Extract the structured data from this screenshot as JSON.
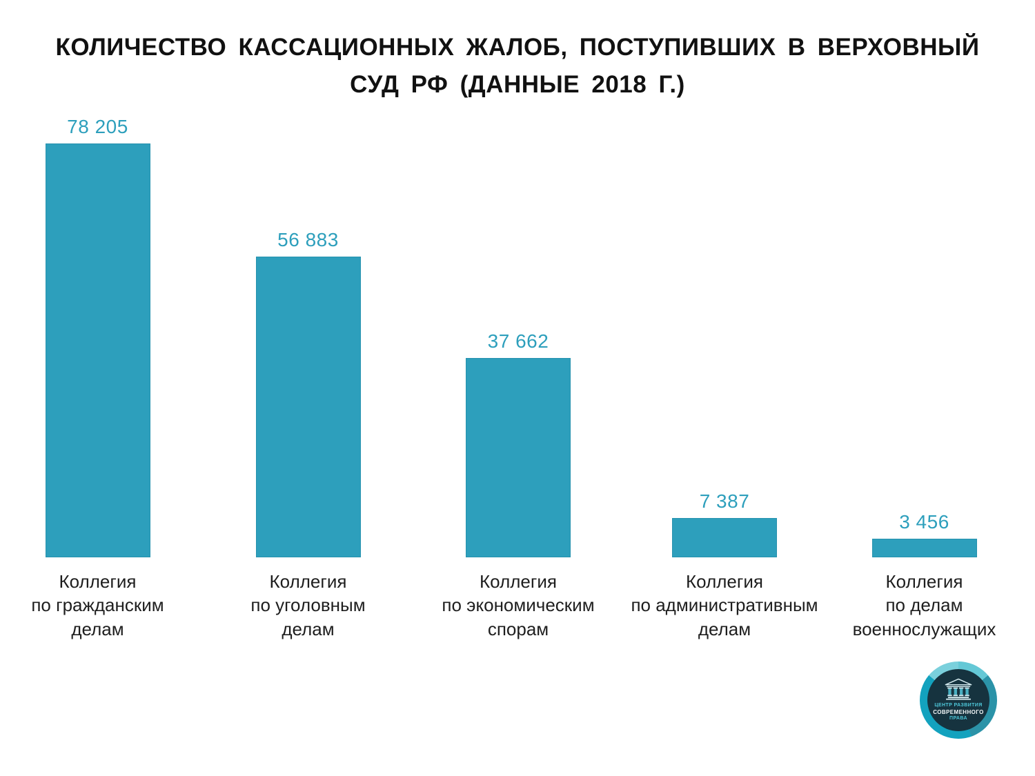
{
  "title_lines": [
    "КОЛИЧЕСТВО КАССАЦИОННЫХ ЖАЛОБ, ПОСТУПИВШИХ В ВЕРХОВНЫЙ",
    "СУД РФ (ДАННЫЕ 2018 Г.)"
  ],
  "chart_data": {
    "type": "bar",
    "title": "КОЛИЧЕСТВО КАССАЦИОННЫХ ЖАЛОБ, ПОСТУПИВШИХ В ВЕРХОВНЫЙ СУД РФ (ДАННЫЕ 2018 Г.)",
    "categories": [
      "Коллегия\nпо гражданским\nделам",
      "Коллегия\nпо уголовным\nделам",
      "Коллегия\nпо экономическим\nспорам",
      "Коллегия\nпо административным\nделам",
      "Коллегия\nпо делам\nвоеннослужащих"
    ],
    "values": [
      78205,
      56883,
      37662,
      7387,
      3456
    ],
    "value_labels": [
      "78 205",
      "56 883",
      "37 662",
      "7 387",
      "3 456"
    ],
    "xlabel": "",
    "ylabel": "",
    "ylim": [
      0,
      80000
    ],
    "grid": false,
    "legend": false,
    "orientation": "vertical",
    "bar_color": "#2d9fbc",
    "value_label_color": "#2d9fbc",
    "category_label_color": "#1e1e1e"
  },
  "logo": {
    "icon": "classical-building-icon",
    "org_line1": "ЦЕНТР РАЗВИТИЯ",
    "org_line2": "СОВРЕМЕННОГО",
    "org_line3": "ПРАВА",
    "colors": {
      "ring_light": "#64c8d6",
      "ring_dark": "#2b93a8",
      "ring_vivid": "#13a2be",
      "inner_circle": "#16333f",
      "accent_text": "#4ec7d9",
      "white_text": "#f4f9fa"
    }
  }
}
